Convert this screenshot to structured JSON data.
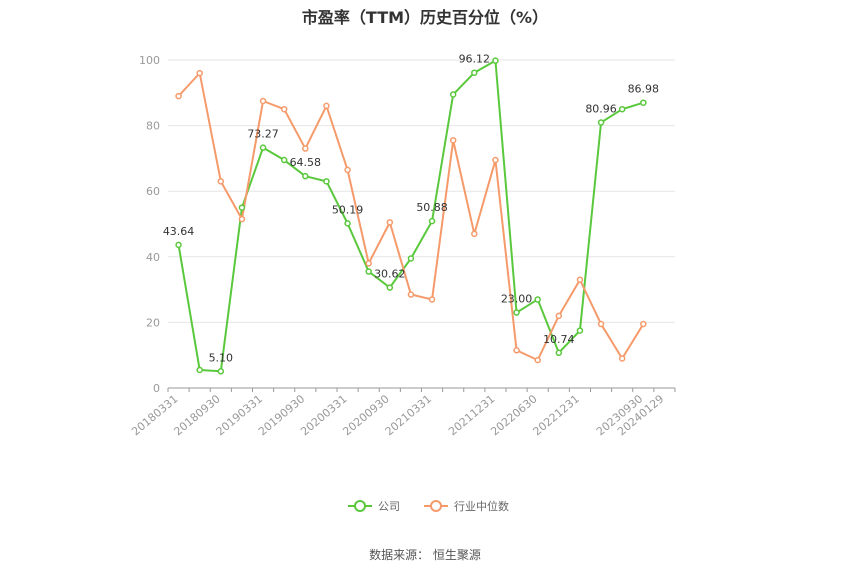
{
  "chart_data": {
    "type": "line",
    "title": "市盈率（TTM）历史百分位（%）",
    "source": "数据来源：  恒生聚源",
    "ylim": [
      0,
      100
    ],
    "yticks": [
      0,
      20,
      40,
      60,
      80,
      100
    ],
    "grid": true,
    "legend_position": "bottom",
    "xtick_labels": [
      "20180331",
      "20180930",
      "20190331",
      "20190930",
      "20200331",
      "20200930",
      "20210331",
      "20211231",
      "20220630",
      "20221231",
      "20230930",
      "20240129"
    ],
    "x": [
      "20180331",
      "20180630",
      "20180930",
      "20181231",
      "20190331",
      "20190630",
      "20190930",
      "20191231",
      "20200331",
      "20200630",
      "20200930",
      "20201231",
      "20210331",
      "20210630",
      "20210930",
      "20211231",
      "20220331",
      "20220630",
      "20220930",
      "20221231",
      "20230331",
      "20230630",
      "20230930",
      "20240129"
    ],
    "series": [
      {
        "name": "公司",
        "color": "#5ac83c",
        "values": [
          43.64,
          5.5,
          5.1,
          55.0,
          73.27,
          69.5,
          64.58,
          63.0,
          50.19,
          35.5,
          30.62,
          39.5,
          50.88,
          89.5,
          96.12,
          99.8,
          23.0,
          27.0,
          10.74,
          17.5,
          80.96,
          85.0,
          86.98,
          null
        ],
        "labels": [
          "43.64",
          null,
          "5.10",
          null,
          "73.27",
          null,
          "64.58",
          null,
          "50.19",
          null,
          "30.62",
          null,
          "50.88",
          null,
          "96.12",
          null,
          "23.00",
          null,
          "10.74",
          null,
          "80.96",
          null,
          "86.98",
          null
        ]
      },
      {
        "name": "行业中位数",
        "color": "#f59a6b",
        "values": [
          89.0,
          96.0,
          63.0,
          51.5,
          87.5,
          85.0,
          73.0,
          86.0,
          66.5,
          38.0,
          50.5,
          28.5,
          27.0,
          75.5,
          47.0,
          69.5,
          11.5,
          8.5,
          22.0,
          33.0,
          19.5,
          9.0,
          19.5,
          null
        ],
        "labels": []
      }
    ]
  }
}
